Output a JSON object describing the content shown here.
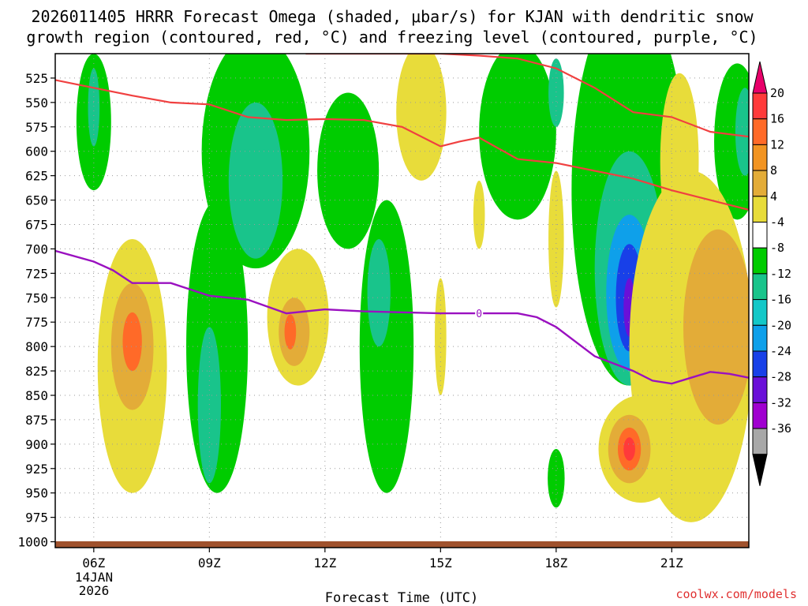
{
  "colors": {
    "red_contour": "#f04040",
    "purple_contour": "#9a10c0",
    "terrain": "#a0522d",
    "credit": "#e03030",
    "grid": "#9a9a9a"
  },
  "chart_data": {
    "type": "heatmap",
    "title_lines": [
      "2026011405 HRRR Forecast Omega (shaded, μbar/s) for KJAN with dendritic snow",
      "growth region (contoured, red, °C) and freezing level (contoured, purple, °C)"
    ],
    "xlabel": "Forecast Time (UTC)",
    "x_range_hours": [
      5,
      23
    ],
    "x_ticks": [
      {
        "hour": 6,
        "label": "06Z"
      },
      {
        "hour": 9,
        "label": "09Z"
      },
      {
        "hour": 12,
        "label": "12Z"
      },
      {
        "hour": 15,
        "label": "15Z"
      },
      {
        "hour": 18,
        "label": "18Z"
      },
      {
        "hour": 21,
        "label": "21Z"
      }
    ],
    "date_label": [
      "14JAN",
      "2026"
    ],
    "y_range_mb": [
      500,
      1006
    ],
    "y_ticks": [
      525,
      550,
      575,
      600,
      625,
      650,
      675,
      700,
      725,
      750,
      775,
      800,
      825,
      850,
      875,
      900,
      925,
      950,
      975,
      1000
    ],
    "colorbar": {
      "ticks": [
        "20",
        "16",
        "12",
        "8",
        "4",
        "-4",
        "-8",
        "-12",
        "-16",
        "-20",
        "-24",
        "-28",
        "-32",
        "-36"
      ],
      "colors": [
        "#e8006a",
        "#ff3a3a",
        "#ff6a28",
        "#f29422",
        "#e3ac38",
        "#e8dc3a",
        "#ffffff",
        "#00cc00",
        "#19c48b",
        "#14c8c8",
        "#0ea0ea",
        "#1840e8",
        "#6a10d8",
        "#a000d0",
        "#a8a8a8",
        "#000000"
      ]
    },
    "omega_features": [
      {
        "name": "green-column-06z",
        "level": -8,
        "cx": 6.0,
        "cy": 570,
        "rx": 0.45,
        "ry": 70
      },
      {
        "name": "teal-core-06z",
        "level": -12,
        "cx": 6.0,
        "cy": 555,
        "rx": 0.15,
        "ry": 40
      },
      {
        "name": "green-column-09z",
        "level": -8,
        "cx": 9.2,
        "cy": 800,
        "rx": 0.8,
        "ry": 150
      },
      {
        "name": "teal-core-09z",
        "level": -12,
        "cx": 9.0,
        "cy": 860,
        "rx": 0.3,
        "ry": 80
      },
      {
        "name": "green-column-10z",
        "level": -8,
        "cx": 10.2,
        "cy": 600,
        "rx": 1.4,
        "ry": 120
      },
      {
        "name": "teal-core-10z",
        "level": -12,
        "cx": 10.2,
        "cy": 630,
        "rx": 0.7,
        "ry": 80
      },
      {
        "name": "green-column-13z",
        "level": -8,
        "cx": 13.6,
        "cy": 800,
        "rx": 0.7,
        "ry": 150
      },
      {
        "name": "teal-core-13z",
        "level": -12,
        "cx": 13.4,
        "cy": 745,
        "rx": 0.3,
        "ry": 55
      },
      {
        "name": "green-column-12z",
        "level": -8,
        "cx": 12.6,
        "cy": 620,
        "rx": 0.8,
        "ry": 80
      },
      {
        "name": "green-column-17z",
        "level": -8,
        "cx": 17.0,
        "cy": 580,
        "rx": 1.0,
        "ry": 90
      },
      {
        "name": "teal-core-18z",
        "level": -12,
        "cx": 18.0,
        "cy": 540,
        "rx": 0.2,
        "ry": 35
      },
      {
        "name": "green-column-20z",
        "level": -8,
        "cx": 19.9,
        "cy": 640,
        "rx": 1.5,
        "ry": 200
      },
      {
        "name": "teal-core-20z",
        "level": -12,
        "cx": 19.9,
        "cy": 720,
        "rx": 0.9,
        "ry": 120
      },
      {
        "name": "lightblue-core-20z",
        "level": -16,
        "cx": 19.9,
        "cy": 745,
        "rx": 0.6,
        "ry": 80
      },
      {
        "name": "blue-core-20z",
        "level": -20,
        "cx": 19.9,
        "cy": 750,
        "rx": 0.35,
        "ry": 55
      },
      {
        "name": "purple-core-20z",
        "level": -24,
        "cx": 19.9,
        "cy": 760,
        "rx": 0.15,
        "ry": 30
      },
      {
        "name": "green-column-23z",
        "level": -8,
        "cx": 22.7,
        "cy": 590,
        "rx": 0.6,
        "ry": 80
      },
      {
        "name": "teal-core-23z",
        "level": -12,
        "cx": 22.9,
        "cy": 580,
        "rx": 0.25,
        "ry": 45
      },
      {
        "name": "green-blob-18z",
        "level": -8,
        "cx": 18.0,
        "cy": 935,
        "rx": 0.22,
        "ry": 30
      },
      {
        "name": "yellow-column-07z",
        "level": 4,
        "cx": 7.0,
        "cy": 820,
        "rx": 0.9,
        "ry": 130
      },
      {
        "name": "orange-core-07z",
        "level": 8,
        "cx": 7.0,
        "cy": 800,
        "rx": 0.55,
        "ry": 65
      },
      {
        "name": "darkorange-core-07z",
        "level": 12,
        "cx": 7.0,
        "cy": 795,
        "rx": 0.25,
        "ry": 30
      },
      {
        "name": "yellow-column-11z",
        "level": 4,
        "cx": 11.3,
        "cy": 770,
        "rx": 0.8,
        "ry": 70
      },
      {
        "name": "orange-core-11z",
        "level": 8,
        "cx": 11.2,
        "cy": 785,
        "rx": 0.4,
        "ry": 35
      },
      {
        "name": "darkorange-core-11z",
        "level": 12,
        "cx": 11.1,
        "cy": 785,
        "rx": 0.15,
        "ry": 18
      },
      {
        "name": "yellow-column-15z",
        "level": 4,
        "cx": 14.5,
        "cy": 560,
        "rx": 0.65,
        "ry": 70
      },
      {
        "name": "yellow-sliver-15z",
        "level": 4,
        "cx": 15.0,
        "cy": 790,
        "rx": 0.15,
        "ry": 60
      },
      {
        "name": "yellow-sliver-16z",
        "level": 4,
        "cx": 16.0,
        "cy": 665,
        "rx": 0.15,
        "ry": 35
      },
      {
        "name": "yellow-sliver-18z",
        "level": 4,
        "cx": 18.0,
        "cy": 690,
        "rx": 0.2,
        "ry": 70
      },
      {
        "name": "yellow-column-21z",
        "level": 4,
        "cx": 21.5,
        "cy": 800,
        "rx": 1.6,
        "ry": 180
      },
      {
        "name": "yellow-column-21z-upper",
        "level": 4,
        "cx": 21.2,
        "cy": 610,
        "rx": 0.5,
        "ry": 90
      },
      {
        "name": "orange-core-22z",
        "level": 8,
        "cx": 22.2,
        "cy": 780,
        "rx": 0.9,
        "ry": 100
      },
      {
        "name": "yellow-lobe-20z",
        "level": 4,
        "cx": 20.2,
        "cy": 905,
        "rx": 1.1,
        "ry": 55
      },
      {
        "name": "orange-lobe-20z",
        "level": 8,
        "cx": 19.9,
        "cy": 905,
        "rx": 0.55,
        "ry": 35
      },
      {
        "name": "darkorange-lobe-20z",
        "level": 12,
        "cx": 19.9,
        "cy": 905,
        "rx": 0.3,
        "ry": 22
      },
      {
        "name": "red-core-20z",
        "level": 16,
        "cx": 19.9,
        "cy": 905,
        "rx": 0.15,
        "ry": 12
      }
    ],
    "red_contours": [
      {
        "hours": [
          5.0,
          6.0,
          7.0,
          8.0,
          9.0,
          10.0,
          11.0,
          12.0,
          13.0,
          14.0,
          15.0,
          15.5,
          16.0,
          17.0,
          18.0,
          19.0,
          20.0,
          21.0,
          22.0,
          23.0
        ],
        "mb": [
          527,
          535,
          543,
          550,
          552,
          565,
          568,
          567,
          568,
          575,
          595,
          590,
          586,
          608,
          612,
          620,
          628,
          640,
          650,
          660
        ]
      },
      {
        "hours": [
          11.5,
          12.0,
          13.0,
          14.0,
          15.0,
          16.0,
          17.0,
          18.0,
          19.0,
          20.0,
          21.0,
          22.0,
          23.0
        ],
        "mb": [
          500,
          500,
          500,
          500,
          500,
          502,
          505,
          515,
          535,
          560,
          565,
          580,
          585
        ]
      }
    ],
    "freezing_level": {
      "label": "0",
      "label_hour": 16.0,
      "hours": [
        5.0,
        6.0,
        6.5,
        7.0,
        8.0,
        9.0,
        10.0,
        11.0,
        12.0,
        13.0,
        14.0,
        15.0,
        16.0,
        17.0,
        17.5,
        18.0,
        19.0,
        20.0,
        20.5,
        21.0,
        21.5,
        22.0,
        22.5,
        23.0
      ],
      "mb": [
        702,
        713,
        722,
        735,
        735,
        748,
        752,
        766,
        762,
        764,
        765,
        766,
        766,
        766,
        770,
        780,
        810,
        825,
        835,
        838,
        832,
        826,
        828,
        832
      ]
    }
  },
  "credit": "coolwx.com/models"
}
